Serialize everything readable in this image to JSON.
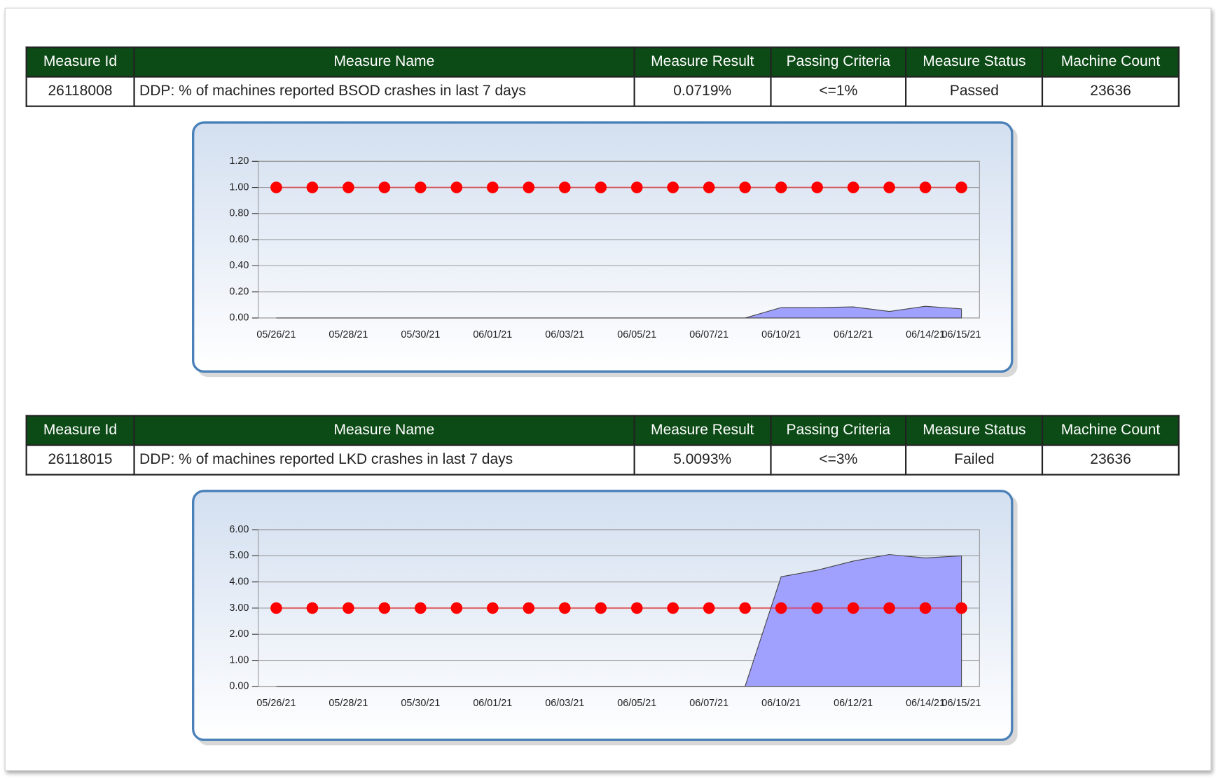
{
  "tables": [
    {
      "header": [
        "Measure Id",
        "Measure Name",
        "Measure Result",
        "Passing Criteria",
        "Measure Status",
        "Machine Count"
      ],
      "row": [
        "26118008",
        "DDP: % of machines reported BSOD crashes in last 7 days",
        "0.0719%",
        "<=1%",
        "Passed",
        "23636"
      ]
    },
    {
      "header": [
        "Measure Id",
        "Measure Name",
        "Measure Result",
        "Passing Criteria",
        "Measure Status",
        "Machine Count"
      ],
      "row": [
        "26118015",
        "DDP: % of machines reported LKD crashes in last 7 days",
        "5.0093%",
        "<=3%",
        "Failed",
        "23636"
      ]
    }
  ],
  "chart_data": [
    {
      "type": "area",
      "grid": true,
      "categories": [
        "05/26/21",
        null,
        "05/28/21",
        null,
        "05/30/21",
        null,
        "06/01/21",
        null,
        "06/03/21",
        null,
        "06/05/21",
        null,
        "06/07/21",
        null,
        "06/10/21",
        null,
        "06/12/21",
        null,
        "06/14/21",
        "06/15/21"
      ],
      "ylim": [
        0,
        1.2
      ],
      "yticks": [
        {
          "value": 0,
          "label": "0.00"
        },
        {
          "value": 0.2,
          "label": "0.20"
        },
        {
          "value": 0.4,
          "label": "0.40"
        },
        {
          "value": 0.6,
          "label": "0.60"
        },
        {
          "value": 0.8,
          "label": "0.80"
        },
        {
          "value": 1,
          "label": "1.00"
        },
        {
          "value": 1.2,
          "label": "1.20"
        }
      ],
      "series": [
        {
          "type": "area",
          "color": "#a0a0ff",
          "values": [
            0,
            0,
            0,
            0,
            0,
            0,
            0,
            0,
            0,
            0,
            0,
            0,
            0,
            0,
            0.08,
            0.08,
            0.085,
            0.05,
            0.09,
            0.07
          ]
        },
        {
          "type": "line",
          "color": "#ff0000",
          "values": [
            1,
            1,
            1,
            1,
            1,
            1,
            1,
            1,
            1,
            1,
            1,
            1,
            1,
            1,
            1,
            1,
            1,
            1,
            1,
            1
          ]
        }
      ]
    },
    {
      "type": "area",
      "grid": true,
      "categories": [
        "05/26/21",
        null,
        "05/28/21",
        null,
        "05/30/21",
        null,
        "06/01/21",
        null,
        "06/03/21",
        null,
        "06/05/21",
        null,
        "06/07/21",
        null,
        "06/10/21",
        null,
        "06/12/21",
        null,
        "06/14/21",
        "06/15/21"
      ],
      "ylim": [
        0,
        6
      ],
      "yticks": [
        {
          "value": 0,
          "label": "0.00"
        },
        {
          "value": 1,
          "label": "1.00"
        },
        {
          "value": 2,
          "label": "2.00"
        },
        {
          "value": 3,
          "label": "3.00"
        },
        {
          "value": 4,
          "label": "4.00"
        },
        {
          "value": 5,
          "label": "5.00"
        },
        {
          "value": 6,
          "label": "6.00"
        }
      ],
      "series": [
        {
          "type": "area",
          "color": "#a0a0ff",
          "values": [
            0,
            0,
            0,
            0,
            0,
            0,
            0,
            0,
            0,
            0,
            0,
            0,
            0,
            0,
            4.2,
            4.45,
            4.8,
            5.05,
            4.92,
            5.0
          ]
        },
        {
          "type": "line",
          "color": "#ff0000",
          "values": [
            3,
            3,
            3,
            3,
            3,
            3,
            3,
            3,
            3,
            3,
            3,
            3,
            3,
            3,
            3,
            3,
            3,
            3,
            3,
            3
          ]
        }
      ]
    }
  ]
}
